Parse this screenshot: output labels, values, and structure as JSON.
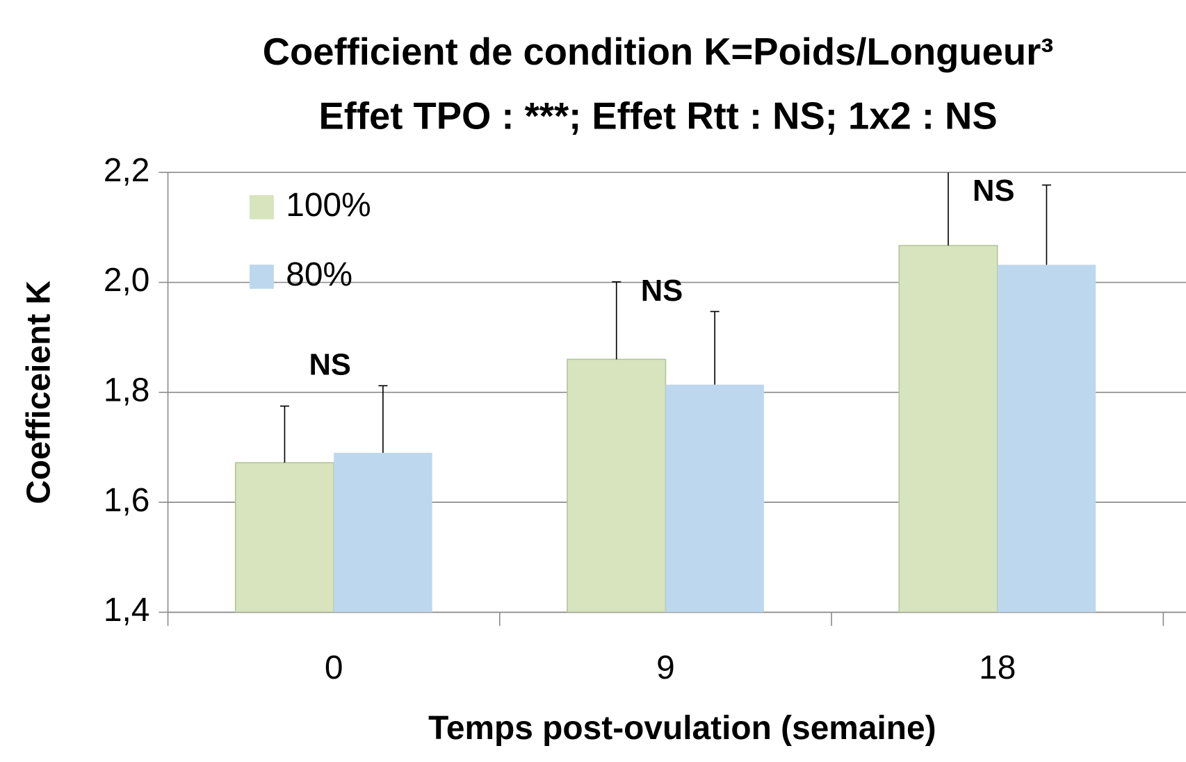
{
  "chart_data": {
    "type": "bar",
    "title": "Coefficient de condition K=Poids/Longueur³",
    "subtitle": "Effet TPO : ***; Effet Rtt : NS;  1x2 : NS",
    "x_label": "Temps post-ovulation (semaine)",
    "y_label": "Coefficeient K",
    "categories": [
      "0",
      "9",
      "18"
    ],
    "series": [
      {
        "name": "100%",
        "color": "#d7e4bd",
        "values": [
          1.672,
          1.86,
          2.067
        ],
        "errors": [
          0.103,
          0.141,
          0.14
        ]
      },
      {
        "name": "80%",
        "color": "#bdd7ee",
        "values": [
          1.69,
          1.814,
          2.032
        ],
        "errors": [
          0.122,
          0.133,
          0.145
        ]
      }
    ],
    "annotations": [
      "NS",
      "NS",
      "NS"
    ],
    "ylim": [
      1.4,
      2.2
    ],
    "yticks": [
      {
        "value": 1.4,
        "label": "1,4"
      },
      {
        "value": 1.6,
        "label": "1,6"
      },
      {
        "value": 1.8,
        "label": "1,8"
      },
      {
        "value": 2.0,
        "label": "2,0"
      },
      {
        "value": 2.2,
        "label": "2,2"
      }
    ],
    "grid": true,
    "legend": "top-left"
  }
}
